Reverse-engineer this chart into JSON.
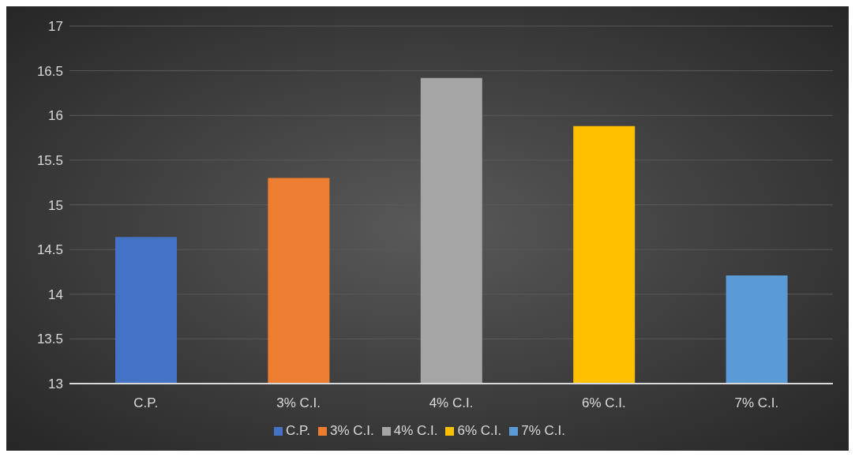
{
  "chart_data": {
    "type": "bar",
    "categories": [
      "C.P.",
      "3% C.I.",
      "4% C.I.",
      "6% C.I.",
      "7% C.I."
    ],
    "series": [
      {
        "name": "C.P.",
        "color": "#4472c4",
        "values": [
          14.64,
          null,
          null,
          null,
          null
        ]
      },
      {
        "name": "3% C.I.",
        "color": "#ed7d31",
        "values": [
          null,
          15.3,
          null,
          null,
          null
        ]
      },
      {
        "name": "4% C.I.",
        "color": "#a5a5a5",
        "values": [
          null,
          null,
          16.42,
          null,
          null
        ]
      },
      {
        "name": "6% C.I.",
        "color": "#ffc000",
        "values": [
          null,
          null,
          null,
          15.88,
          null
        ]
      },
      {
        "name": "7% C.I.",
        "color": "#5b9bd5",
        "values": [
          null,
          null,
          null,
          null,
          14.21
        ]
      }
    ],
    "stacked": true,
    "ylim": [
      13,
      17
    ],
    "yticks": [
      13,
      13.5,
      14,
      14.5,
      15,
      15.5,
      16,
      16.5,
      17
    ],
    "grid": "y",
    "legend": "bottom"
  }
}
